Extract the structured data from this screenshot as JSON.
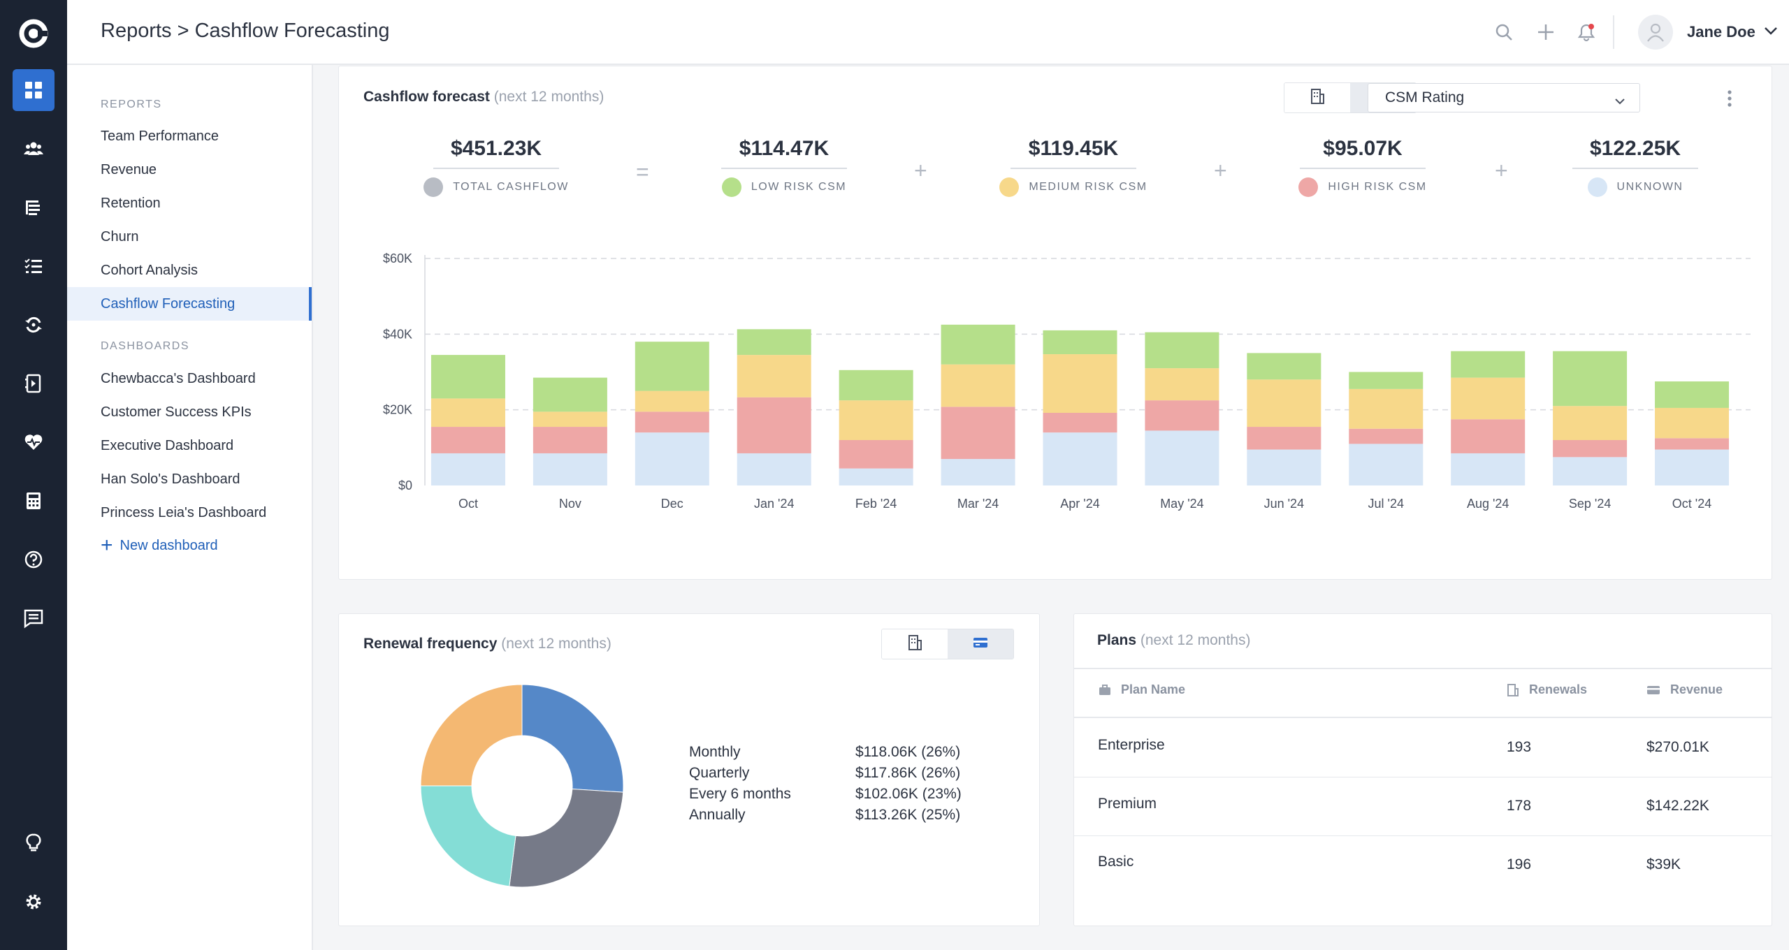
{
  "app": {
    "logo": "app-logo"
  },
  "rail": {
    "items": [
      {
        "icon": "dashboard-grid-icon",
        "active": true
      },
      {
        "icon": "customers-icon"
      },
      {
        "icon": "segments-icon"
      },
      {
        "icon": "tasks-list-icon"
      },
      {
        "icon": "renewals-icon"
      },
      {
        "icon": "playbooks-icon"
      },
      {
        "icon": "health-icon"
      },
      {
        "icon": "calculator-icon"
      },
      {
        "icon": "help-icon"
      },
      {
        "icon": "messages-icon"
      },
      {
        "icon": "lightbulb-icon"
      },
      {
        "icon": "settings-icon"
      }
    ]
  },
  "header": {
    "breadcrumb_root": "Reports",
    "breadcrumb_sep": " > ",
    "breadcrumb_current": "Cashflow Forecasting",
    "user_name": "Jane Doe"
  },
  "sidebar": {
    "reports_heading": "REPORTS",
    "reports": [
      "Team Performance",
      "Revenue",
      "Retention",
      "Churn",
      "Cohort Analysis",
      "Cashflow Forecasting"
    ],
    "active": "Cashflow Forecasting",
    "dashboards_heading": "DASHBOARDS",
    "dashboards": [
      "Chewbacca's Dashboard",
      "Customer Success KPIs",
      "Executive Dashboard",
      "Han Solo's Dashboard",
      "Princess Leia's Dashboard"
    ],
    "new_dashboard": "New dashboard"
  },
  "cashflow": {
    "title": "Cashflow forecast",
    "subtitle": "(next 12 months)",
    "group_by": "CSM Rating",
    "kpis": [
      {
        "value": "$451.23K",
        "label": "TOTAL CASHFLOW",
        "color": "#b8bcc4"
      },
      {
        "value": "$114.47K",
        "label": "LOW RISK CSM",
        "color": "#b5df8a"
      },
      {
        "value": "$119.45K",
        "label": "MEDIUM RISK CSM",
        "color": "#f7d88a"
      },
      {
        "value": "$95.07K",
        "label": "HIGH RISK CSM",
        "color": "#eea7a6"
      },
      {
        "value": "$122.25K",
        "label": "UNKNOWN",
        "color": "#d7e6f6"
      }
    ],
    "ops": [
      "=",
      "+",
      "+",
      "+"
    ]
  },
  "chart_data": {
    "type": "bar",
    "stacked": true,
    "title": "",
    "xlabel": "",
    "ylabel": "",
    "ylim": [
      0,
      60000
    ],
    "yticks": [
      "$0",
      "$20K",
      "$40K",
      "$60K"
    ],
    "categories": [
      "Oct",
      "Nov",
      "Dec",
      "Jan '24",
      "Feb '24",
      "Mar '24",
      "Apr '24",
      "May '24",
      "Jun '24",
      "Jul '24",
      "Aug '24",
      "Sep '24",
      "Oct '24"
    ],
    "series": [
      {
        "name": "UNKNOWN",
        "color": "#d7e6f6",
        "values": [
          8500,
          8500,
          14000,
          8500,
          4500,
          7000,
          14000,
          14500,
          9500,
          11000,
          8500,
          7500,
          9500
        ]
      },
      {
        "name": "HIGH RISK CSM",
        "color": "#eea7a6",
        "values": [
          7000,
          7000,
          5500,
          14800,
          7500,
          13800,
          5200,
          8000,
          6000,
          4000,
          9000,
          4500,
          3000
        ]
      },
      {
        "name": "MEDIUM RISK CSM",
        "color": "#f7d88a",
        "values": [
          7500,
          4000,
          5500,
          11200,
          10500,
          11200,
          15500,
          8500,
          12500,
          10500,
          11000,
          9000,
          8000
        ]
      },
      {
        "name": "LOW RISK CSM",
        "color": "#b5df8a",
        "values": [
          11500,
          9000,
          13000,
          6800,
          8000,
          10500,
          6300,
          9500,
          7000,
          4500,
          7000,
          14500,
          7000
        ]
      }
    ]
  },
  "renewal": {
    "title": "Renewal frequency",
    "subtitle": "(next 12 months)",
    "rows": [
      {
        "label": "Monthly",
        "value": "$118.06K (26%)",
        "pct": 26,
        "color": "#5588c8"
      },
      {
        "label": "Quarterly",
        "value": "$117.86K (26%)",
        "pct": 26,
        "color": "#767a88"
      },
      {
        "label": "Every 6 months",
        "value": "$102.06K (23%)",
        "pct": 23,
        "color": "#84ddd6"
      },
      {
        "label": "Annually",
        "value": "$113.26K (25%)",
        "pct": 25,
        "color": "#f4b872"
      }
    ]
  },
  "plans": {
    "title": "Plans",
    "subtitle": "(next 12 months)",
    "columns": [
      "Plan Name",
      "Renewals",
      "Revenue"
    ],
    "rows": [
      {
        "name": "Enterprise",
        "renewals": "193",
        "revenue": "$270.01K"
      },
      {
        "name": "Premium",
        "renewals": "178",
        "revenue": "$142.22K"
      },
      {
        "name": "Basic",
        "renewals": "196",
        "revenue": "$39K"
      }
    ]
  }
}
